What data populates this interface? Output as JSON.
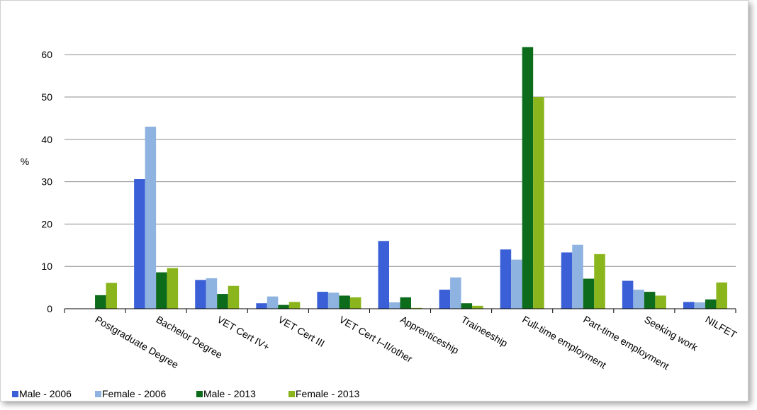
{
  "chart_data": {
    "type": "bar",
    "title": "",
    "xlabel": "",
    "ylabel": "%",
    "ylim": [
      0,
      65
    ],
    "yticks": [
      0,
      10,
      20,
      30,
      40,
      50,
      60
    ],
    "grid": true,
    "legend_position": "bottom-left",
    "categories": [
      "Postgraduate Degree",
      "Bachelor Degree",
      "VET Cert IV+",
      "VET Cert III",
      "VET Cert I–II/other",
      "Apprenticeship",
      "Traineeship",
      "Full-time employment",
      "Part-time employment",
      "Seeking work",
      "NILFET"
    ],
    "series": [
      {
        "name": "Male - 2006",
        "color": "#3a5fd6",
        "values": [
          0,
          30.6,
          6.8,
          1.3,
          4.0,
          16.0,
          4.5,
          14.0,
          13.3,
          6.6,
          1.6
        ]
      },
      {
        "name": "Female - 2006",
        "color": "#8fb3e0",
        "values": [
          0,
          43.0,
          7.2,
          2.9,
          3.8,
          1.5,
          7.4,
          11.6,
          15.1,
          4.5,
          1.5
        ]
      },
      {
        "name": "Male - 2013",
        "color": "#0d6b1c",
        "values": [
          3.2,
          8.6,
          3.5,
          0.9,
          3.1,
          2.7,
          1.3,
          61.8,
          7.1,
          4.0,
          2.2
        ]
      },
      {
        "name": "Female - 2013",
        "color": "#8bb51c",
        "values": [
          6.1,
          9.6,
          5.4,
          1.6,
          2.7,
          0.2,
          0.7,
          50.0,
          12.9,
          3.1,
          6.2
        ]
      }
    ]
  }
}
